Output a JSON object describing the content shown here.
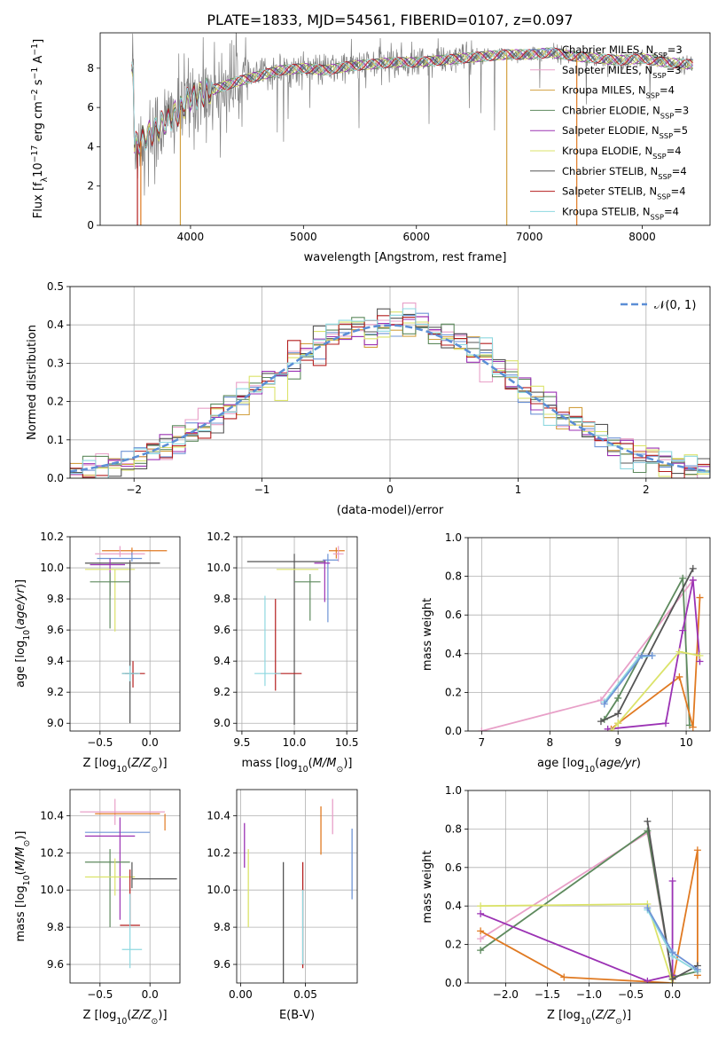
{
  "figure": {
    "title": "PLATE=1833, MJD=54561, FIBERID=0107, z=0.097"
  },
  "colors": {
    "Chabrier MILES": "#6f94d6",
    "Salpeter MILES": "#e8a0c8",
    "Kroupa MILES": "#d2a040",
    "Chabrier ELODIE": "#5e8a5e",
    "Salpeter ELODIE": "#9b32b4",
    "Kroupa ELODIE": "#dbe36a",
    "Chabrier STELIB": "#555555",
    "Salpeter STELIB": "#b41e1e",
    "Kroupa STELIB": "#8ed8e0",
    "orange": "#e07a22",
    "data": "#808080",
    "gauss": "#5b8ed6",
    "grid": "#b0b0b0"
  },
  "chart_data": [
    {
      "type": "line",
      "id": "spectrum",
      "xlabel": "wavelength [Angstrom, rest frame]",
      "ylabel_main": "Flux [f",
      "ylabel_sub": "λ",
      "ylabel_rest": "10",
      "ylabel_exp1": "−17",
      "ylabel_mid": " erg cm",
      "ylabel_exp2": "−2",
      "ylabel_s": " s",
      "ylabel_exp3": "−1",
      "ylabel_end": " A",
      "ylabel_exp4": "−1",
      "ylabel_close": "]",
      "xlim": [
        3200,
        8600
      ],
      "ylim": [
        0,
        9.8
      ],
      "xticks": [
        4000,
        5000,
        6000,
        7000,
        8000
      ],
      "yticks": [
        0,
        2,
        4,
        6,
        8
      ],
      "legend": [
        {
          "name": "Chabrier MILES",
          "nssp": "3"
        },
        {
          "name": "Salpeter MILES",
          "nssp": "3"
        },
        {
          "name": "Kroupa MILES",
          "nssp": "4"
        },
        {
          "name": "Chabrier ELODIE",
          "nssp": "3"
        },
        {
          "name": "Salpeter ELODIE",
          "nssp": "5"
        },
        {
          "name": "Kroupa ELODIE",
          "nssp": "4"
        },
        {
          "name": "Chabrier STELIB",
          "nssp": "4"
        },
        {
          "name": "Salpeter STELIB",
          "nssp": "4"
        },
        {
          "name": "Kroupa STELIB",
          "nssp": "4"
        }
      ],
      "legend_sub": "SSP",
      "legend_prefix": "N",
      "legend_placement": "right",
      "continuum": [
        [
          3500,
          4.0
        ],
        [
          3600,
          4.5
        ],
        [
          3700,
          4.9
        ],
        [
          3800,
          5.4
        ],
        [
          3900,
          5.8
        ],
        [
          4000,
          6.5
        ],
        [
          4200,
          6.9
        ],
        [
          4400,
          7.3
        ],
        [
          4600,
          7.6
        ],
        [
          4800,
          7.9
        ],
        [
          5000,
          8.0
        ],
        [
          5200,
          7.9
        ],
        [
          5400,
          8.1
        ],
        [
          5600,
          8.2
        ],
        [
          5800,
          8.3
        ],
        [
          6000,
          8.3
        ],
        [
          6200,
          8.4
        ],
        [
          6400,
          8.5
        ],
        [
          6600,
          8.6
        ],
        [
          6800,
          8.7
        ],
        [
          7000,
          8.7
        ],
        [
          7200,
          8.8
        ],
        [
          7400,
          8.6
        ],
        [
          7600,
          8.5
        ],
        [
          7800,
          8.4
        ],
        [
          8000,
          8.5
        ],
        [
          8200,
          8.3
        ],
        [
          8400,
          8.2
        ]
      ]
    },
    {
      "type": "bar",
      "id": "histogram",
      "xlabel": "(data-model)/error",
      "ylabel": "Normed distribution",
      "xlim": [
        -2.5,
        2.5
      ],
      "ylim": [
        0,
        0.5
      ],
      "xticks": [
        -2,
        -1,
        0,
        1,
        2
      ],
      "xtick_labels": [
        "−2",
        "−1",
        "0",
        "1",
        "2"
      ],
      "yticks": [
        0.0,
        0.1,
        0.2,
        0.3,
        0.4,
        0.5
      ],
      "ytick_labels": [
        "0.0",
        "0.1",
        "0.2",
        "0.3",
        "0.4",
        "0.5"
      ],
      "legend_label": "𝒩(0, 1)",
      "legend_placement": "top-right",
      "bin_width": 0.1
    },
    {
      "type": "scatter",
      "id": "age-Z",
      "xlabel": "Z [log",
      "xlabel_sub": "10",
      "xlabel_rest": "(Z/Z",
      "xlabel_sun": "⊙",
      "xlabel_close": ")]",
      "ylabel": "age  [log",
      "ylabel_sub": "10",
      "ylabel_rest": "(age/yr)]",
      "xlim": [
        -0.8,
        0.3
      ],
      "ylim": [
        8.95,
        10.2
      ],
      "xticks": [
        -0.5,
        0.0
      ],
      "xtick_labels": [
        "−0.5",
        "0.0"
      ],
      "yticks": [
        9.0,
        9.2,
        9.4,
        9.6,
        9.8,
        10.0,
        10.2
      ],
      "ytick_labels": [
        "9.0",
        "9.2",
        "9.4",
        "9.6",
        "9.8",
        "10.0",
        "10.2"
      ]
    },
    {
      "type": "scatter",
      "id": "age-mass",
      "xlabel": "mass [log",
      "xlabel_sub": "10",
      "xlabel_rest": "(M/M",
      "xlabel_sun": "⊙",
      "xlabel_close": ")]",
      "xlim": [
        9.45,
        10.6
      ],
      "ylim": [
        8.95,
        10.2
      ],
      "xticks": [
        9.5,
        10.0,
        10.5
      ],
      "xtick_labels": [
        "9.5",
        "10.0",
        "10.5"
      ],
      "yticks": [
        9.0,
        9.2,
        9.4,
        9.6,
        9.8,
        10.0,
        10.2
      ],
      "ytick_labels": [
        "9.0",
        "9.2",
        "9.4",
        "9.6",
        "9.8",
        "10.0",
        "10.2"
      ]
    },
    {
      "type": "line",
      "id": "massweight-age",
      "xlabel": "age  [log",
      "xlabel_sub": "10",
      "xlabel_rest": "(age/yr)",
      "ylabel": "mass weight",
      "xlim": [
        6.8,
        10.35
      ],
      "ylim": [
        0,
        1.0
      ],
      "xticks": [
        7,
        8,
        9,
        10
      ],
      "xtick_labels": [
        "7",
        "8",
        "9",
        "10"
      ],
      "yticks": [
        0.0,
        0.2,
        0.4,
        0.6,
        0.8,
        1.0
      ],
      "ytick_labels": [
        "0.0",
        "0.2",
        "0.4",
        "0.6",
        "0.8",
        "1.0"
      ],
      "series": [
        {
          "color": "Salpeter MILES",
          "x": [
            7.0,
            8.75,
            10.1
          ],
          "y": [
            0.0,
            0.16,
            0.78
          ]
        },
        {
          "color": "Chabrier ELODIE",
          "x": [
            8.8,
            9.0,
            9.95,
            10.05
          ],
          "y": [
            0.06,
            0.17,
            0.79,
            0.03
          ]
        },
        {
          "color": "orange",
          "x": [
            8.9,
            9.0,
            9.9,
            10.1,
            10.2
          ],
          "y": [
            0.01,
            0.04,
            0.28,
            0.02,
            0.69
          ]
        },
        {
          "color": "Salpeter ELODIE",
          "x": [
            8.85,
            9.7,
            9.95,
            10.1,
            10.2
          ],
          "y": [
            0.01,
            0.04,
            0.52,
            0.78,
            0.36
          ]
        },
        {
          "color": "Kroupa ELODIE",
          "x": [
            8.9,
            9.0,
            9.9,
            10.2
          ],
          "y": [
            0.0,
            0.04,
            0.41,
            0.39
          ]
        },
        {
          "color": "Chabrier STELIB",
          "x": [
            8.75,
            9.0,
            10.1
          ],
          "y": [
            0.05,
            0.09,
            0.84
          ]
        },
        {
          "color": "Kroupa STELIB",
          "x": [
            8.8,
            9.3,
            9.5
          ],
          "y": [
            0.15,
            0.38,
            0.39
          ]
        },
        {
          "color": "Chabrier MILES",
          "x": [
            8.8,
            9.35,
            9.5
          ],
          "y": [
            0.14,
            0.39,
            0.39
          ]
        }
      ]
    },
    {
      "type": "scatter",
      "id": "mass-Z",
      "xlabel": "Z [log",
      "xlabel_sub": "10",
      "xlabel_rest": "(Z/Z",
      "xlabel_sun": "⊙",
      "xlabel_close": ")]",
      "ylabel": "mass [log",
      "ylabel_sub": "10",
      "ylabel_rest": "(M/M",
      "ylabel_sun": "⊙",
      "ylabel_close": ")]",
      "xlim": [
        -0.8,
        0.3
      ],
      "ylim": [
        9.5,
        10.54
      ],
      "xticks": [
        -0.5,
        0.0
      ],
      "xtick_labels": [
        "−0.5",
        "0.0"
      ],
      "yticks": [
        9.6,
        9.8,
        10.0,
        10.2,
        10.4
      ],
      "ytick_labels": [
        "9.6",
        "9.8",
        "10.0",
        "10.2",
        "10.4"
      ]
    },
    {
      "type": "scatter",
      "id": "mass-EBV",
      "xlabel": "E(B-V)",
      "xlim": [
        -0.003,
        0.09
      ],
      "ylim": [
        9.5,
        10.54
      ],
      "xticks": [
        0.0,
        0.05
      ],
      "xtick_labels": [
        "0.00",
        "0.05"
      ],
      "yticks": [
        9.6,
        9.8,
        10.0,
        10.2,
        10.4
      ],
      "ytick_labels": [
        "9.6",
        "9.8",
        "10.0",
        "10.2",
        "10.4"
      ]
    },
    {
      "type": "line",
      "id": "massweight-Z",
      "xlabel": "Z [log",
      "xlabel_sub": "10",
      "xlabel_rest": "(Z/Z",
      "xlabel_sun": "⊙",
      "xlabel_close": ")]",
      "ylabel": "mass weight",
      "xlim": [
        -2.45,
        0.45
      ],
      "ylim": [
        0,
        1.0
      ],
      "xticks": [
        -2.0,
        -1.5,
        -1.0,
        -0.5,
        0.0
      ],
      "xtick_labels": [
        "−2.0",
        "−1.5",
        "−1.0",
        "−0.5",
        "0.0"
      ],
      "yticks": [
        0.0,
        0.2,
        0.4,
        0.6,
        0.8,
        1.0
      ],
      "ytick_labels": [
        "0.0",
        "0.2",
        "0.4",
        "0.6",
        "0.8",
        "1.0"
      ],
      "series": [
        {
          "color": "Salpeter MILES",
          "x": [
            -2.3,
            -0.3,
            0.0
          ],
          "y": [
            0.23,
            0.78,
            0.02
          ]
        },
        {
          "color": "Chabrier ELODIE",
          "x": [
            -2.3,
            -0.3,
            0.0,
            0.3
          ],
          "y": [
            0.17,
            0.79,
            0.03,
            0.06
          ]
        },
        {
          "color": "orange",
          "x": [
            -2.3,
            -1.3,
            0.0,
            0.3,
            0.3
          ],
          "y": [
            0.27,
            0.03,
            0.0,
            0.69,
            0.04
          ]
        },
        {
          "color": "Salpeter ELODIE",
          "x": [
            -2.3,
            -0.3,
            0.0,
            0.0
          ],
          "y": [
            0.36,
            0.01,
            0.04,
            0.53
          ]
        },
        {
          "color": "Kroupa ELODIE",
          "x": [
            -2.3,
            -0.3,
            0.0
          ],
          "y": [
            0.4,
            0.41,
            0.0
          ]
        },
        {
          "color": "Chabrier STELIB",
          "x": [
            -0.3,
            0.0,
            0.3
          ],
          "y": [
            0.84,
            0.02,
            0.09
          ]
        },
        {
          "color": "Kroupa STELIB",
          "x": [
            -0.3,
            0.0,
            0.3
          ],
          "y": [
            0.38,
            0.14,
            0.06
          ]
        },
        {
          "color": "Chabrier MILES",
          "x": [
            -0.3,
            0.0,
            0.3
          ],
          "y": [
            0.39,
            0.16,
            0.07
          ]
        }
      ]
    }
  ]
}
